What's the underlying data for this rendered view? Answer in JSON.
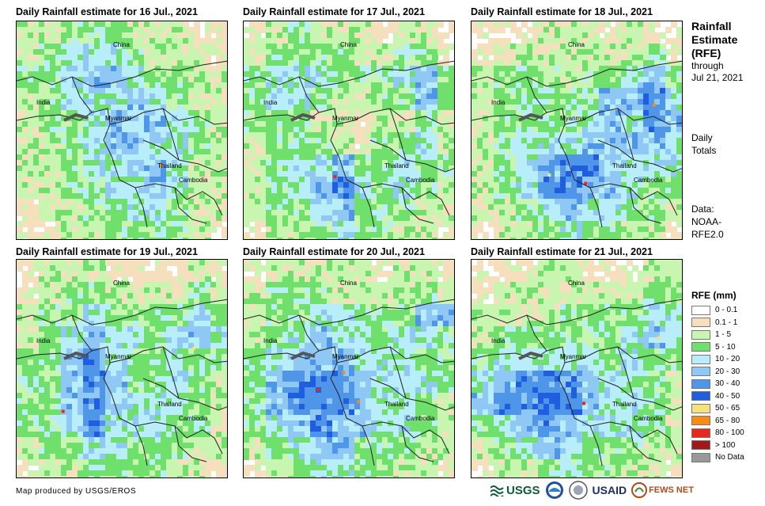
{
  "panels": [
    {
      "title": "Daily Rainfall estimate for 16 Jul., 2021"
    },
    {
      "title": "Daily Rainfall estimate for 17 Jul., 2021"
    },
    {
      "title": "Daily Rainfall estimate for 18 Jul., 2021"
    },
    {
      "title": "Daily Rainfall estimate for 19 Jul., 2021"
    },
    {
      "title": "Daily Rainfall estimate for 20 Jul., 2021"
    },
    {
      "title": "Daily Rainfall estimate for 21 Jul., 2021"
    }
  ],
  "map_labels": {
    "china": "China",
    "india": "India",
    "myanmar": "Myanmar",
    "thailand": "Thailand",
    "cambodia": "Cambodia"
  },
  "side": {
    "title_line1": "Rainfall",
    "title_line2": "Estimate",
    "title_line3": "(RFE)",
    "through": "through",
    "date": "Jul 21, 2021",
    "daily": "Daily",
    "totals": "Totals",
    "data_label": "Data:",
    "data_src1": "NOAA-",
    "data_src2": "RFE2.0"
  },
  "legend": {
    "title": "RFE (mm)",
    "items": [
      {
        "label": "0 - 0.1",
        "color": "#ffffff"
      },
      {
        "label": "0.1 - 1",
        "color": "#f5dfbd"
      },
      {
        "label": "1 - 5",
        "color": "#c8f5b0"
      },
      {
        "label": "5 - 10",
        "color": "#6fe06b"
      },
      {
        "label": "10 - 20",
        "color": "#b8eefa"
      },
      {
        "label": "20 - 30",
        "color": "#8fc8f5"
      },
      {
        "label": "30 - 40",
        "color": "#4f96e8"
      },
      {
        "label": "40 - 50",
        "color": "#1f5ee0"
      },
      {
        "label": "50 - 65",
        "color": "#f7e27a"
      },
      {
        "label": "65 - 80",
        "color": "#f58c14"
      },
      {
        "label": "80 - 100",
        "color": "#e8281c"
      },
      {
        "label": "> 100",
        "color": "#a01818"
      },
      {
        "label": "No Data",
        "color": "#999999"
      }
    ]
  },
  "credit": "Map produced by USGS/EROS",
  "logos": {
    "usgs": "USGS",
    "usaid": "USAID",
    "fewsnet": "FEWS NET"
  }
}
